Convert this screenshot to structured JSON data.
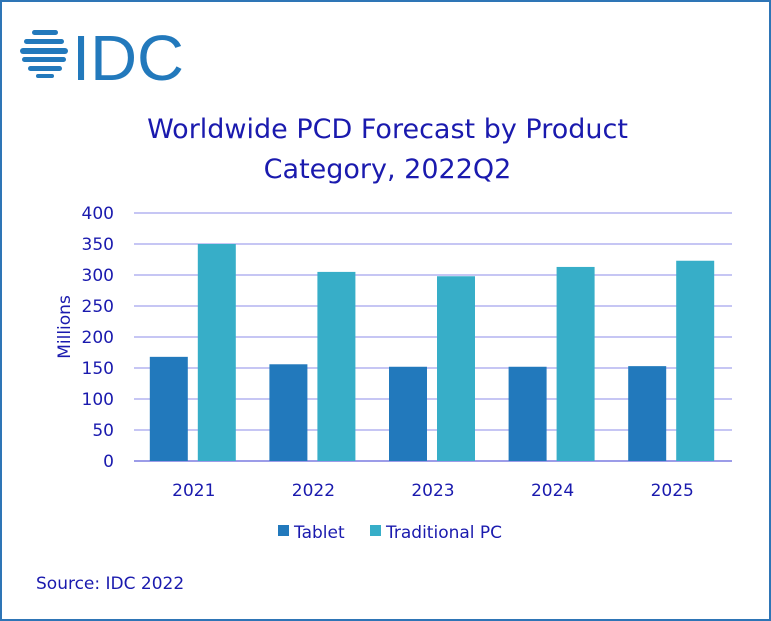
{
  "logo_text": "IDC",
  "source": "Source: IDC 2022",
  "colors": {
    "tablet": "#2279BC",
    "traditional_pc": "#37AEC8",
    "grid": "#B4B4F0",
    "text": "#1A1AAE",
    "frame": "#2E75B6"
  },
  "chart_data": {
    "type": "bar",
    "title": "Worldwide PCD Forecast by Product Category, 2022Q2",
    "title_lines": [
      "Worldwide PCD Forecast by Product",
      "Category, 2022Q2"
    ],
    "ylabel": "Millions",
    "xlabel": "",
    "ylim": [
      0,
      400
    ],
    "yticks": [
      "0",
      "50",
      "100",
      "150",
      "200",
      "250",
      "300",
      "350",
      "400"
    ],
    "grid": true,
    "legend": "bottom",
    "categories": [
      "2021",
      "2022",
      "2023",
      "2024",
      "2025"
    ],
    "series": [
      {
        "name": "Tablet",
        "values": [
          168,
          156,
          152,
          152,
          153
        ]
      },
      {
        "name": "Traditional PC",
        "values": [
          350,
          305,
          298,
          313,
          323
        ]
      }
    ]
  }
}
